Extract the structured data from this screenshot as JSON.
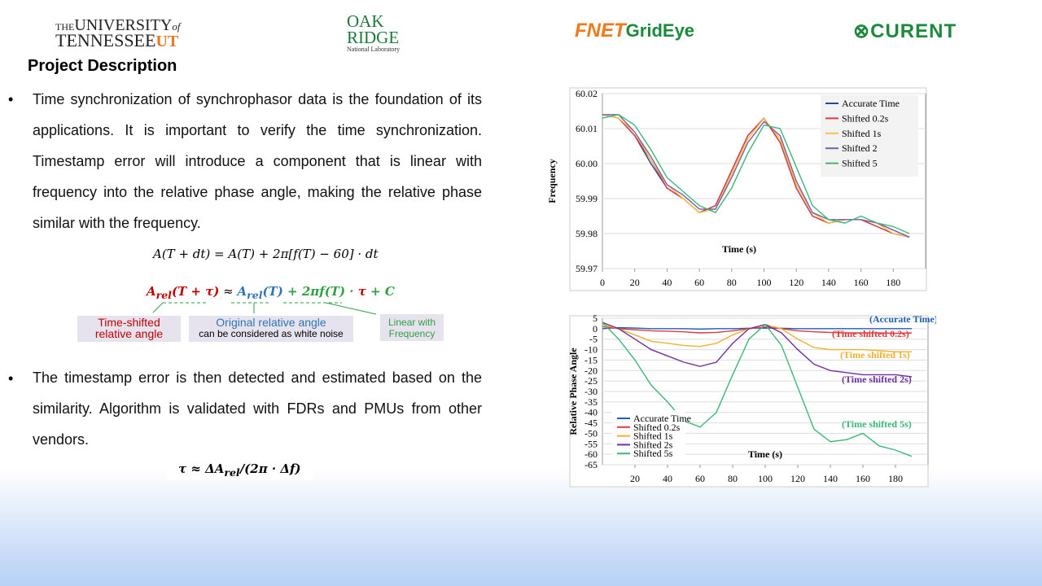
{
  "logos": {
    "utk": [
      "THE",
      "UNIVERSITY",
      "of",
      "TENNESSEE",
      "UT"
    ],
    "ornl": [
      "OAK",
      "RIDGE",
      "National Laboratory"
    ],
    "fnet": [
      "FNET",
      "GridEye"
    ],
    "curent": "CURENT"
  },
  "title": "Project Description",
  "bullets": [
    "Time synchronization of synchrophasor data is the foundation of its applications. It is important to verify the time synchronization. Timestamp error will introduce a component that is linear with frequency into the relative phase angle, making the relative phase similar with the frequency.",
    "The timestamp error is then detected and estimated based on the similarity. Algorithm is validated with FDRs and PMUs from other vendors."
  ],
  "equation1": "A(T + dt) = A(T) +  2π[f(T) − 60] · dt",
  "equation2": [
    "A",
    "rel",
    "(T + τ)",
    " ≈ ",
    "A",
    "rel",
    "(T)",
    " + 2πf(T) · ",
    "τ",
    " + C"
  ],
  "equation3": [
    "τ ≈ ΔA",
    "rel",
    "/(2π · Δf)"
  ],
  "labels": [
    "Time-shifted",
    "relative angle",
    "Original relative angle",
    "can be considered as white noise",
    "Linear with",
    "Frequency"
  ],
  "chart_data": [
    {
      "type": "line",
      "xlabel": "Time (s)",
      "ylabel": "Frequency",
      "x": [
        0,
        10,
        20,
        30,
        40,
        50,
        60,
        70,
        80,
        90,
        100,
        110,
        120,
        130,
        140,
        150,
        160,
        170,
        180,
        190
      ],
      "xlim": [
        0,
        200
      ],
      "xticks": [
        0,
        20,
        40,
        60,
        80,
        100,
        120,
        140,
        160,
        180
      ],
      "ylim": [
        59.97,
        60.02
      ],
      "yticks": [
        59.97,
        59.98,
        59.99,
        {
          "value": 60,
          "label": "60.00"
        },
        60.01,
        60.02
      ],
      "grid": true,
      "legend": "upper right",
      "series": [
        {
          "name": "Accurate Time",
          "color": "#1f4e9c",
          "values": [
            60.014,
            60.013,
            60.008,
            60.0,
            59.993,
            59.99,
            59.986,
            59.988,
            59.998,
            60.008,
            60.013,
            60.006,
            59.993,
            59.985,
            59.983,
            59.984,
            59.984,
            59.982,
            59.98,
            59.979
          ]
        },
        {
          "name": "Shifted 0.2s",
          "color": "#e0393e",
          "values": [
            60.014,
            60.013,
            60.008,
            60.001,
            59.993,
            59.99,
            59.986,
            59.988,
            59.998,
            60.008,
            60.013,
            60.006,
            59.993,
            59.985,
            59.983,
            59.984,
            59.984,
            59.982,
            59.98,
            59.979
          ]
        },
        {
          "name": "Shifted 1s",
          "color": "#f5c242",
          "values": [
            60.014,
            60.013,
            60.009,
            60.001,
            59.994,
            59.99,
            59.986,
            59.987,
            59.997,
            60.007,
            60.013,
            60.007,
            59.994,
            59.986,
            59.983,
            59.984,
            59.984,
            59.983,
            59.98,
            59.979
          ]
        },
        {
          "name": "Shifted 2",
          "color": "#7a5ca8",
          "values": [
            60.014,
            60.014,
            60.009,
            60.002,
            59.994,
            59.991,
            59.987,
            59.987,
            59.996,
            60.006,
            60.012,
            60.008,
            59.995,
            59.986,
            59.984,
            59.984,
            59.984,
            59.983,
            59.981,
            59.979
          ]
        },
        {
          "name": "Shifted 5",
          "color": "#3cb878",
          "values": [
            60.013,
            60.014,
            60.011,
            60.004,
            59.996,
            59.992,
            59.988,
            59.986,
            59.993,
            60.003,
            60.011,
            60.01,
            59.999,
            59.988,
            59.984,
            59.983,
            59.985,
            59.983,
            59.982,
            59.98
          ]
        }
      ]
    },
    {
      "type": "line",
      "xlabel": "Time (s)",
      "ylabel": "Relative Phase Angle",
      "x": [
        0,
        10,
        20,
        30,
        40,
        50,
        60,
        70,
        80,
        90,
        100,
        110,
        120,
        130,
        140,
        150,
        160,
        170,
        180,
        190
      ],
      "xlim": [
        0,
        200
      ],
      "xticks": [
        20,
        40,
        60,
        80,
        100,
        120,
        140,
        160,
        180
      ],
      "ylim": [
        -65,
        5
      ],
      "yticks": [
        -65,
        -60,
        -55,
        -50,
        -45,
        -40,
        -35,
        -30,
        -25,
        -20,
        -15,
        -10,
        -5,
        0,
        5
      ],
      "grid": true,
      "legend": "lower left",
      "annotations": [
        "(Accurate Time)",
        "(Time shifted 0.2s)",
        "(Time shifted 1s)",
        "(Time shifted 2s)",
        "(Time shifted 5s)"
      ],
      "series": [
        {
          "name": "Accurate Time",
          "color": "#1f5fb4",
          "values": [
            0,
            0.5,
            0.3,
            0,
            0,
            0,
            -0.2,
            0,
            0,
            0.2,
            0.3,
            0.2,
            0,
            0,
            0,
            0,
            0,
            0,
            0,
            0
          ]
        },
        {
          "name": "Shifted 0.2s",
          "color": "#e0393e",
          "values": [
            1,
            0,
            -0.5,
            -1,
            -1.2,
            -1.5,
            -2,
            -1.8,
            -1,
            0,
            0.8,
            0,
            -1,
            -1.5,
            -1.8,
            -2,
            -2,
            -2,
            -2.2,
            -2
          ]
        },
        {
          "name": "Shifted 1s",
          "color": "#f0b030",
          "values": [
            2,
            0,
            -3,
            -6,
            -7,
            -8,
            -8.5,
            -7,
            -3,
            0,
            2,
            0,
            -5,
            -9,
            -10,
            -10,
            -10,
            -10.5,
            -11,
            -11
          ]
        },
        {
          "name": "Shifted 2s",
          "color": "#7030a0",
          "values": [
            3,
            0,
            -5,
            -10,
            -13,
            -16,
            -18,
            -16,
            -7,
            0,
            2,
            -2,
            -10,
            -17,
            -20,
            -21,
            -22,
            -22,
            -22,
            -23
          ]
        },
        {
          "name": "Shifted 5s",
          "color": "#3cb878",
          "values": [
            3,
            -5,
            -15,
            -27,
            -35,
            -44,
            -47,
            -40,
            -22,
            -5,
            2,
            -8,
            -28,
            -48,
            -54,
            -53,
            -50,
            -56,
            -58,
            -61
          ]
        }
      ]
    }
  ]
}
